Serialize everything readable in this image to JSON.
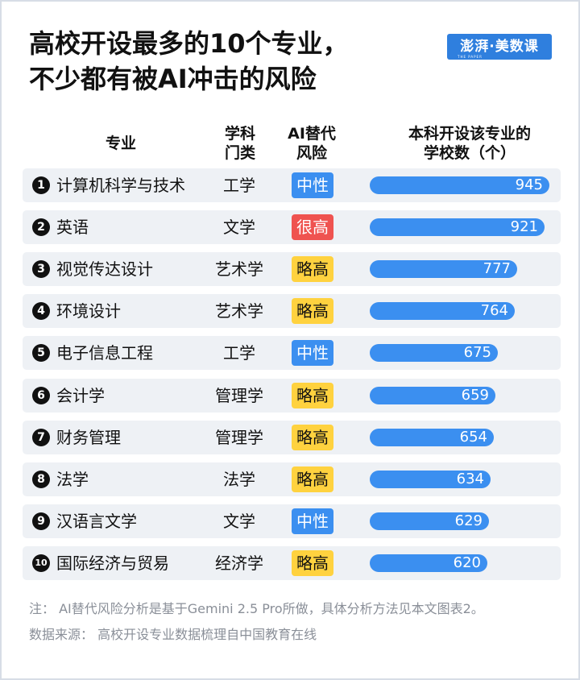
{
  "title_lines": [
    "高校开设最多的10个专业，",
    "不少都有被AI冲击的风险"
  ],
  "logo": {
    "text": "澎湃·美数课",
    "sub": "THE PAPER"
  },
  "headers": {
    "major": "专业",
    "category": [
      "学科",
      "门类"
    ],
    "risk": [
      "AI替代",
      "风险"
    ],
    "count": [
      "本科开设该专业的",
      "学校数（个）"
    ]
  },
  "colors": {
    "bar": "#3b8ff0",
    "neutral": "#3b8ff0",
    "high": "#ef5350",
    "slightly_high": "#ffd23f"
  },
  "chart_data": {
    "type": "table",
    "max_value": 945,
    "rows": [
      {
        "rank": "1",
        "major": "计算机科学与技术",
        "category": "工学",
        "risk": "中性",
        "risk_level": "neutral",
        "value": 945
      },
      {
        "rank": "2",
        "major": "英语",
        "category": "文学",
        "risk": "很高",
        "risk_level": "high",
        "value": 921
      },
      {
        "rank": "3",
        "major": "视觉传达设计",
        "category": "艺术学",
        "risk": "略高",
        "risk_level": "slight",
        "value": 777
      },
      {
        "rank": "4",
        "major": "环境设计",
        "category": "艺术学",
        "risk": "略高",
        "risk_level": "slight",
        "value": 764
      },
      {
        "rank": "5",
        "major": "电子信息工程",
        "category": "工学",
        "risk": "中性",
        "risk_level": "neutral",
        "value": 675
      },
      {
        "rank": "6",
        "major": "会计学",
        "category": "管理学",
        "risk": "略高",
        "risk_level": "slight",
        "value": 659
      },
      {
        "rank": "7",
        "major": "财务管理",
        "category": "管理学",
        "risk": "略高",
        "risk_level": "slight",
        "value": 654
      },
      {
        "rank": "8",
        "major": "法学",
        "category": "法学",
        "risk": "略高",
        "risk_level": "slight",
        "value": 634
      },
      {
        "rank": "9",
        "major": "汉语言文学",
        "category": "文学",
        "risk": "中性",
        "risk_level": "neutral",
        "value": 629
      },
      {
        "rank": "10",
        "major": "国际经济与贸易",
        "category": "经济学",
        "risk": "略高",
        "risk_level": "slight",
        "value": 620
      }
    ]
  },
  "notes": [
    "注：  AI替代风险分析是基于Gemini 2.5 Pro所做，具体分析方法见本文图表2。",
    "数据来源：  高校开设专业数据梳理自中国教育在线"
  ]
}
